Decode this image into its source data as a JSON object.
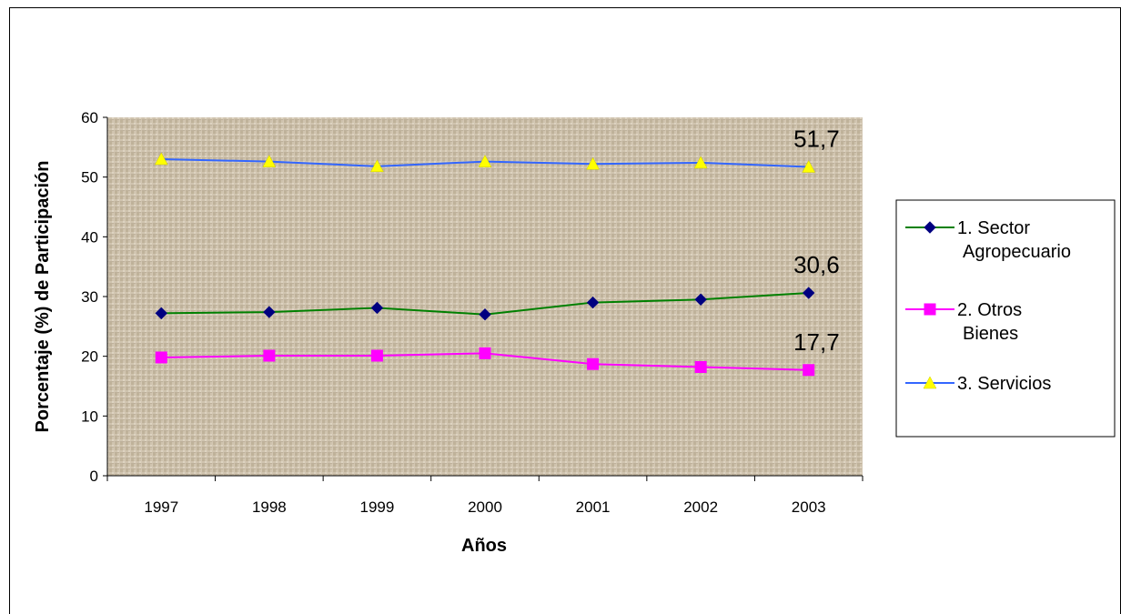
{
  "chart_data": {
    "type": "line",
    "title": "",
    "xlabel": "Años",
    "ylabel": "Porcentaje (%) de Participación",
    "categories": [
      "1997",
      "1998",
      "1999",
      "2000",
      "2001",
      "2002",
      "2003"
    ],
    "ylim": [
      0,
      60
    ],
    "yticks": [
      "0",
      "10",
      "20",
      "30",
      "40",
      "50",
      "60"
    ],
    "grid": false,
    "legend_position": "right",
    "series": [
      {
        "name_lines": [
          "1. Sector",
          "Agropecuario"
        ],
        "values": [
          27.2,
          27.4,
          28.1,
          27.0,
          29.0,
          29.5,
          30.6
        ],
        "line_color": "#008000",
        "marker": "diamond",
        "marker_color": "#000080",
        "end_label": "30,6"
      },
      {
        "name_lines": [
          "2. Otros",
          "Bienes"
        ],
        "values": [
          19.8,
          20.1,
          20.1,
          20.5,
          18.7,
          18.2,
          17.7
        ],
        "line_color": "#ff00ff",
        "marker": "square",
        "marker_color": "#ff00ff",
        "end_label": "17,7"
      },
      {
        "name_lines": [
          "3. Servicios"
        ],
        "values": [
          53.0,
          52.6,
          51.8,
          52.6,
          52.2,
          52.4,
          51.7
        ],
        "line_color": "#3366ff",
        "marker": "triangle",
        "marker_color": "#ffff00",
        "end_label": "51,7"
      }
    ]
  }
}
